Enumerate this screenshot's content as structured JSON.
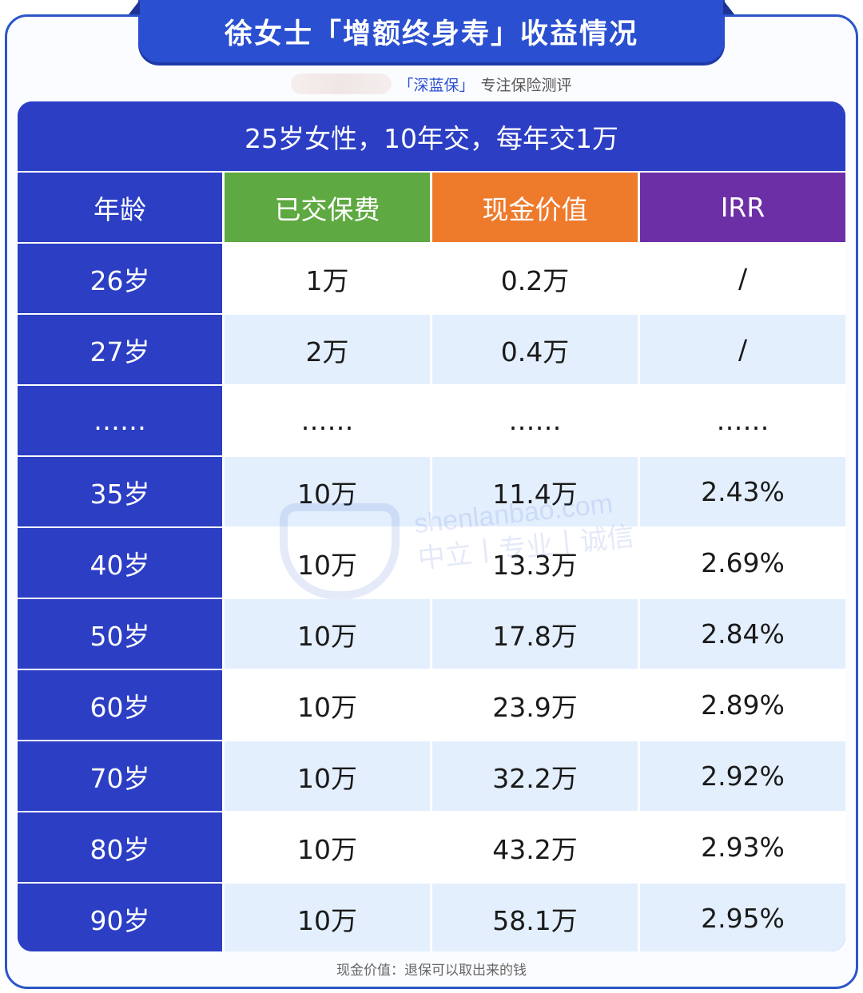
{
  "title": "徐女士「增额终身寿」收益情况",
  "subtitle": {
    "brand": "「深蓝保」",
    "text": "专注保险测评"
  },
  "table": {
    "caption": "25岁女性，10年交，每年交1万",
    "headers": [
      "年龄",
      "已交保费",
      "现金价值",
      "IRR"
    ],
    "rows": [
      [
        "26岁",
        "1万",
        "0.2万",
        "/"
      ],
      [
        "27岁",
        "2万",
        "0.4万",
        "/"
      ],
      [
        "……",
        "……",
        "……",
        "……"
      ],
      [
        "35岁",
        "10万",
        "11.4万",
        "2.43%"
      ],
      [
        "40岁",
        "10万",
        "13.3万",
        "2.69%"
      ],
      [
        "50岁",
        "10万",
        "17.8万",
        "2.84%"
      ],
      [
        "60岁",
        "10万",
        "23.9万",
        "2.89%"
      ],
      [
        "70岁",
        "10万",
        "32.2万",
        "2.92%"
      ],
      [
        "80岁",
        "10万",
        "43.2万",
        "2.93%"
      ],
      [
        "90岁",
        "10万",
        "58.1万",
        "2.95%"
      ]
    ]
  },
  "watermark": {
    "logo": "深蓝保",
    "line1": "shenlanbao.com",
    "line2": "中立丨专业丨诚信"
  },
  "footnote": "现金价值：退保可以取出来的钱",
  "colors": {
    "primary_blue": "#2b3ec4",
    "paid_green": "#5ea941",
    "cash_orange": "#ee7a2c",
    "irr_purple": "#6c2fa6",
    "row_alt": "#e3effd"
  }
}
